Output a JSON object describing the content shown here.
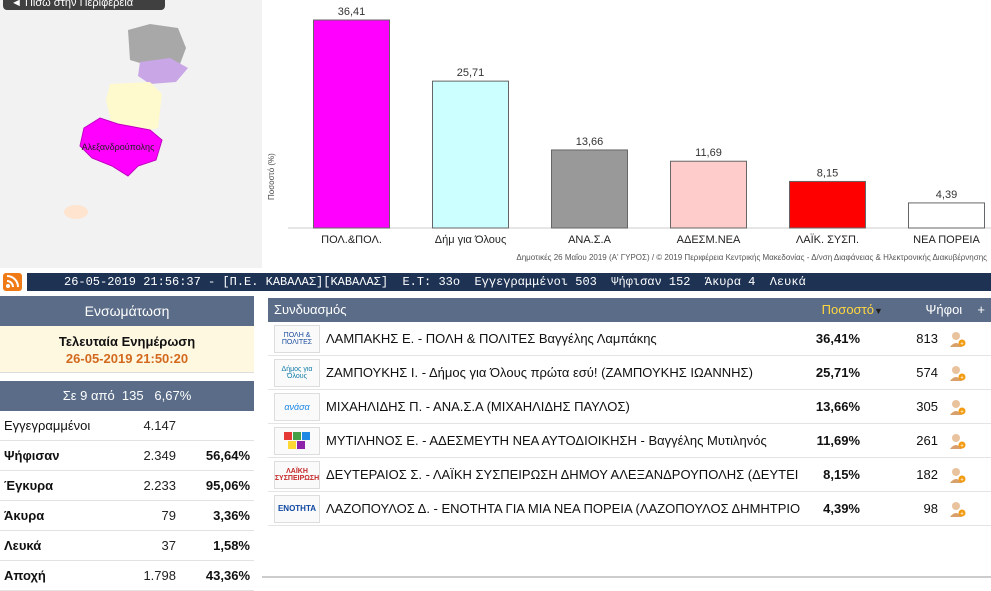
{
  "map": {
    "back_button": "◄ Πίσω στην Περιφέρεια",
    "highlight_label": "Αλεξανδρούπολης"
  },
  "chart_data": {
    "type": "bar",
    "categories": [
      "ΠΟΛ.&ΠΟΛ.",
      "Δήμ για Όλους",
      "ΑΝΑ.Σ.Α",
      "ΑΔΕΣΜ.ΝΕΑ",
      "ΛΑΪΚ. ΣΥΣΠ.",
      "ΝΕΑ ΠΟΡΕΙΑ"
    ],
    "values": [
      36.41,
      25.71,
      13.66,
      11.69,
      8.15,
      4.39
    ],
    "value_labels": [
      "36,41",
      "25,71",
      "13,66",
      "11,69",
      "8,15",
      "4,39"
    ],
    "colors": [
      "#ff00ff",
      "#ccffff",
      "#999999",
      "#ffcccc",
      "#ff0000",
      "#ffffff"
    ],
    "ylabel": "Ποσοστό (%)",
    "ylim": [
      0,
      40
    ],
    "grid": false,
    "source_note": "Δημοτικές 26 Μαΐου 2019 (Α' ΓΥΡΟΣ) / © 2019 Περιφέρεια Κεντρικής Μακεδονίας - Δ/νση Διαφάνειας & Ηλεκτρονικής Διακυβέρνησης"
  },
  "ticker": {
    "text": "26-05-2019 21:56:37 - [Π.Ε. ΚΑΒΑΛΑΣ][ΚΑΒΑΛΑΣ]  Ε.Τ: 33ο  Εγγεγραμμένοι 503  Ψήφισαν 152  Άκυρα 4  Λευκά"
  },
  "left": {
    "title": "Ενσωμάτωση",
    "last_update_label": "Τελευταία Ενημέρωση",
    "last_update_value": "26-05-2019 21:50:20",
    "progress": "Σε 9 από  135   6,67%",
    "stats": [
      {
        "label": "Εγγεγραμμένοι",
        "value": "4.147",
        "pct": ""
      },
      {
        "label": "Ψήφισαν",
        "value": "2.349",
        "pct": "56,64%"
      },
      {
        "label": "Έγκυρα",
        "value": "2.233",
        "pct": "95,06%"
      },
      {
        "label": "Άκυρα",
        "value": "79",
        "pct": "3,36%"
      },
      {
        "label": "Λευκά",
        "value": "37",
        "pct": "1,58%"
      },
      {
        "label": "Αποχή",
        "value": "1.798",
        "pct": "43,36%"
      }
    ]
  },
  "table": {
    "headers": {
      "party": "Συνδυασμός",
      "pct": "Ποσοστό",
      "votes": "Ψήφοι",
      "plus": "+"
    },
    "rows": [
      {
        "logo": "ΠΟΛΗ & ΠΟΛΙΤΕΣ",
        "name": "ΛΑΜΠΑΚΗΣ Ε. - ΠΟΛΗ & ΠΟΛΙΤΕΣ Βαγγέλης Λαμπάκης",
        "pct": "36,41%",
        "votes": "813"
      },
      {
        "logo": "Δήμος για Όλους",
        "name": "ΖΑΜΠΟΥΚΗΣ Ι. - Δήμος για Όλους πρώτα εσύ! (ΖΑΜΠΟΥΚΗΣ ΙΩΑΝΝΗΣ)",
        "pct": "25,71%",
        "votes": "574"
      },
      {
        "logo": "ανάσα",
        "name": "ΜΙΧΑΗΛΙΔΗΣ Π. - ΑΝΑ.Σ.Α (ΜΙΧΑΗΛΙΔΗΣ ΠΑΥΛΟΣ)",
        "pct": "13,66%",
        "votes": "305"
      },
      {
        "logo": "",
        "name": "ΜΥΤΙΛΗΝΟΣ Ε. - ΑΔΕΣΜΕΥΤΗ ΝΕΑ ΑΥΤΟΔΙΟΙΚΗΣΗ - Βαγγέλης Μυτιληνός",
        "pct": "11,69%",
        "votes": "261"
      },
      {
        "logo": "ΛΑΪΚΗ ΣΥΣΠΕΙΡΩΣΗ",
        "name": "ΔΕΥΤΕΡΑΙΟΣ Σ. - ΛΑΪΚΗ ΣΥΣΠΕΙΡΩΣΗ ΔΗΜΟΥ ΑΛΕΞΑΝΔΡΟΥΠΟΛΗΣ (ΔΕΥΤΕΙ",
        "pct": "8,15%",
        "votes": "182"
      },
      {
        "logo": "ΕΝΟΤΗΤΑ",
        "name": "ΛΑΖΟΠΟΥΛΟΣ Δ. - ΕΝΟΤΗΤΑ ΓΙΑ ΜΙΑ ΝΕΑ ΠΟΡΕΙΑ (ΛΑΖΟΠΟΥΛΟΣ ΔΗΜΗΤΡΙΟ",
        "pct": "4,39%",
        "votes": "98"
      }
    ]
  }
}
